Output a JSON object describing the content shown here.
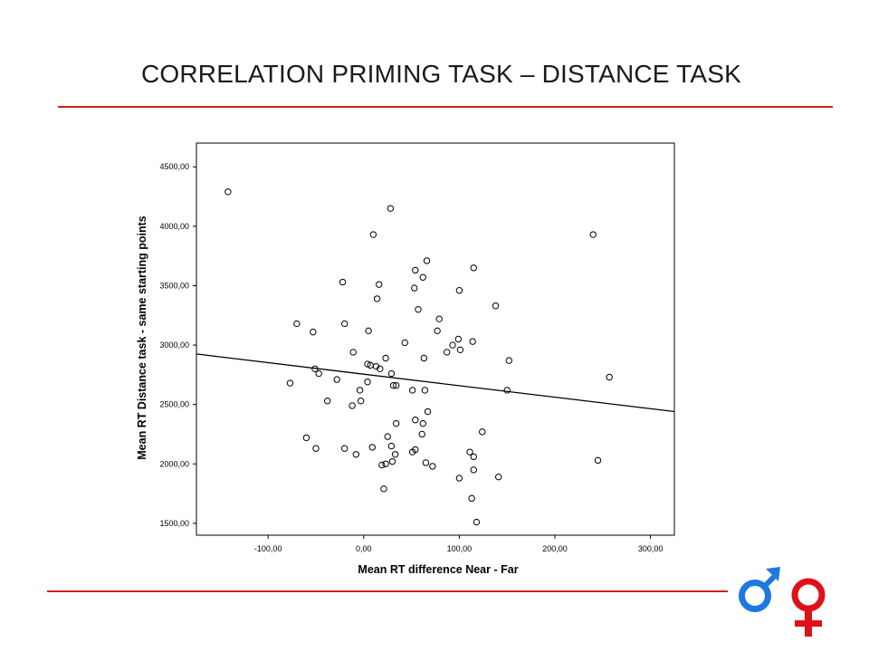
{
  "slide": {
    "title": "CORRELATION PRIMING TASK – DISTANCE TASK"
  },
  "chart_data": {
    "type": "scatter",
    "title": "",
    "xlabel": "Mean RT difference Near - Far",
    "ylabel": "Mean RT Distance task - same starting points",
    "xlim": [
      -175,
      325
    ],
    "ylim": [
      1400,
      4700
    ],
    "xticks": [
      -100,
      0,
      100,
      200,
      300
    ],
    "yticks": [
      1500,
      2000,
      2500,
      3000,
      3500,
      4000,
      4500
    ],
    "xtick_labels": [
      "-100,00",
      "0,00",
      "100,00",
      "200,00",
      "300,00"
    ],
    "ytick_labels": [
      "1500,00",
      "2000,00",
      "2500,00",
      "3000,00",
      "3500,00",
      "4000,00",
      "4500,00"
    ],
    "grid": false,
    "fit_line": {
      "x": [
        -175,
        325
      ],
      "y": [
        2925,
        2440
      ]
    },
    "points": [
      [
        -142,
        4290
      ],
      [
        28,
        4150
      ],
      [
        10,
        3930
      ],
      [
        240,
        3930
      ],
      [
        66,
        3710
      ],
      [
        54,
        3630
      ],
      [
        115,
        3650
      ],
      [
        62,
        3570
      ],
      [
        -22,
        3530
      ],
      [
        16,
        3510
      ],
      [
        53,
        3480
      ],
      [
        100,
        3460
      ],
      [
        14,
        3390
      ],
      [
        57,
        3300
      ],
      [
        138,
        3330
      ],
      [
        79,
        3220
      ],
      [
        -70,
        3180
      ],
      [
        -20,
        3180
      ],
      [
        -53,
        3110
      ],
      [
        5,
        3120
      ],
      [
        77,
        3120
      ],
      [
        99,
        3050
      ],
      [
        114,
        3030
      ],
      [
        43,
        3020
      ],
      [
        93,
        3000
      ],
      [
        -11,
        2940
      ],
      [
        87,
        2940
      ],
      [
        101,
        2960
      ],
      [
        23,
        2890
      ],
      [
        63,
        2890
      ],
      [
        152,
        2870
      ],
      [
        4,
        2840
      ],
      [
        7,
        2830
      ],
      [
        13,
        2820
      ],
      [
        17,
        2800
      ],
      [
        -51,
        2800
      ],
      [
        -47,
        2760
      ],
      [
        29,
        2760
      ],
      [
        -28,
        2710
      ],
      [
        4,
        2690
      ],
      [
        -77,
        2680
      ],
      [
        257,
        2730
      ],
      [
        31,
        2660
      ],
      [
        34,
        2660
      ],
      [
        51,
        2620
      ],
      [
        64,
        2620
      ],
      [
        150,
        2620
      ],
      [
        -4,
        2620
      ],
      [
        -38,
        2530
      ],
      [
        -3,
        2530
      ],
      [
        -12,
        2490
      ],
      [
        67,
        2440
      ],
      [
        34,
        2340
      ],
      [
        54,
        2370
      ],
      [
        62,
        2340
      ],
      [
        -60,
        2220
      ],
      [
        25,
        2230
      ],
      [
        61,
        2250
      ],
      [
        124,
        2270
      ],
      [
        -50,
        2130
      ],
      [
        -20,
        2130
      ],
      [
        9,
        2140
      ],
      [
        29,
        2150
      ],
      [
        -8,
        2080
      ],
      [
        33,
        2080
      ],
      [
        54,
        2120
      ],
      [
        51,
        2100
      ],
      [
        111,
        2100
      ],
      [
        115,
        2060
      ],
      [
        245,
        2030
      ],
      [
        65,
        2010
      ],
      [
        30,
        2020
      ],
      [
        19,
        1990
      ],
      [
        23,
        2000
      ],
      [
        72,
        1980
      ],
      [
        115,
        1950
      ],
      [
        100,
        1880
      ],
      [
        141,
        1890
      ],
      [
        21,
        1790
      ],
      [
        113,
        1710
      ],
      [
        118,
        1510
      ]
    ]
  },
  "icons": [
    "male-symbol-icon",
    "female-symbol-icon"
  ],
  "colors": {
    "rule": "#cc2222",
    "male": "#1f78e0",
    "female": "#e0101a"
  }
}
